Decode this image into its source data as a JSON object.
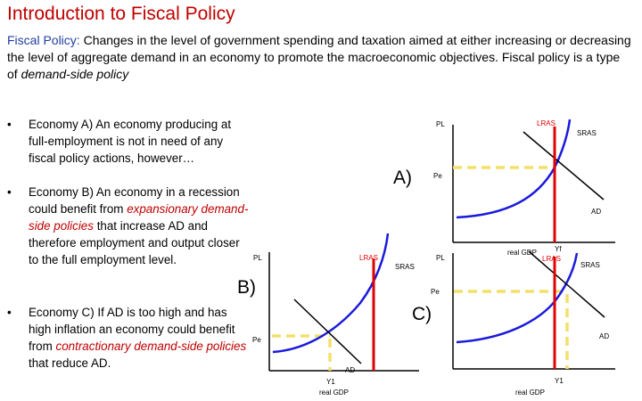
{
  "header": {
    "title": "Introduction to Fiscal Policy",
    "definition_term": "Fiscal Policy:",
    "definition_body": "Changes in the level of government spending and taxation aimed at either increasing or decreasing the level of aggregate demand in an economy to promote the macroeconomic objectives. Fiscal policy is a type of",
    "definition_emph": "demand-side policy"
  },
  "bullets": [
    {
      "symbol": "•",
      "lead": "Economy A)",
      "text": "An economy producing at full-employment is not in need of any fiscal policy actions, however…"
    },
    {
      "symbol": "•",
      "lead": "Economy B)",
      "text_before": "An economy in a recession could benefit from",
      "emph": "expansionary demand-side policies",
      "text_after": "that increase AD and therefore employment and output closer to the full employment level."
    },
    {
      "symbol": "•",
      "lead": "Economy C)",
      "text_before": "If AD is too high and has high inflation an economy could benefit from",
      "emph": "contractionary demand-side policies",
      "text_after": "that reduce AD."
    }
  ],
  "diagrams": {
    "a": {
      "label": "A)",
      "y_axis": "PL",
      "x_axis": "",
      "lras": "LRAS",
      "sras": "SRAS",
      "ad": "AD",
      "price": "Pe",
      "output": "Yf"
    },
    "b": {
      "label": "B)",
      "y_axis": "PL",
      "x_axis": "real GDP",
      "lras": "LRAS",
      "sras": "SRAS",
      "ad": "AD",
      "price": "Pe",
      "output": "Y1"
    },
    "c": {
      "label": "C)",
      "y_axis": "PL",
      "x_axis": "real GDP",
      "lras": "LRAS",
      "sras": "SRAS",
      "ad": "AD",
      "price": "Pe",
      "output": "Y1"
    }
  },
  "colors": {
    "title": "#c00000",
    "term": "#1f3da0",
    "lras": "#e00000",
    "sras": "#1a1adc",
    "equilibrium_guides": "#f2e06a",
    "ad": "#000000"
  }
}
